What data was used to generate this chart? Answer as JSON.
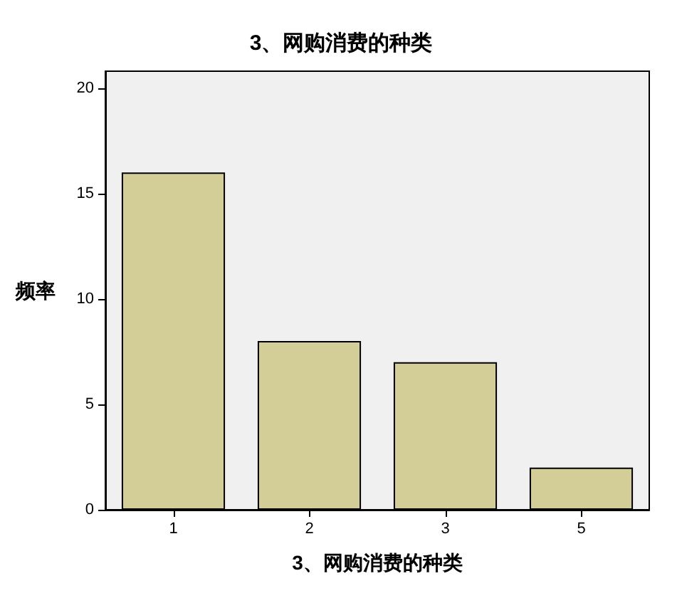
{
  "chart_data": {
    "type": "bar",
    "title": "3、网购消费的种类",
    "xlabel": "3、网购消费的种类",
    "ylabel": "频率",
    "categories": [
      "1",
      "2",
      "3",
      "5"
    ],
    "values": [
      16,
      8,
      7,
      2
    ],
    "color": "#d3ce97",
    "ylim": [
      0,
      20.8
    ],
    "yticks": [
      0,
      5,
      10,
      15,
      20
    ],
    "grid": false
  }
}
